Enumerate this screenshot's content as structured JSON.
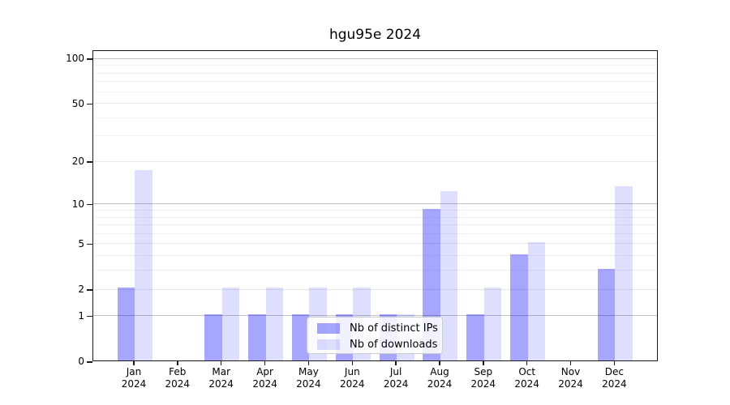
{
  "title": "hgu95e 2024",
  "legend": {
    "entries": [
      "Nb of distinct IPs",
      "Nb of downloads"
    ]
  },
  "chart_data": {
    "type": "bar",
    "title": "hgu95e 2024",
    "categories": [
      "Jan 2024",
      "Feb 2024",
      "Mar 2024",
      "Apr 2024",
      "May 2024",
      "Jun 2024",
      "Jul 2024",
      "Aug 2024",
      "Sep 2024",
      "Oct 2024",
      "Nov 2024",
      "Dec 2024"
    ],
    "series": [
      {
        "name": "Nb of distinct IPs",
        "color": "#0000ff",
        "alpha": 0.35,
        "values": [
          2,
          0,
          1,
          1,
          1,
          1,
          1,
          9,
          1,
          4,
          0,
          3
        ]
      },
      {
        "name": "Nb of downloads",
        "color": "#0000ff",
        "alpha": 0.13,
        "values": [
          17,
          0,
          2,
          2,
          2,
          2,
          1,
          12,
          2,
          5,
          0,
          13
        ]
      }
    ],
    "xlabel": "",
    "ylabel": "",
    "yscale": "log1p",
    "yticks": [
      100,
      50,
      20,
      10,
      5,
      2,
      1,
      0
    ],
    "ylim": [
      0,
      111
    ],
    "grid": "horizontal",
    "legend_position": "lower center",
    "grid_colors": {
      "decade": "#c3c3c3",
      "labeled": "#e7e7e7",
      "minor": "#f1f1f1"
    }
  }
}
